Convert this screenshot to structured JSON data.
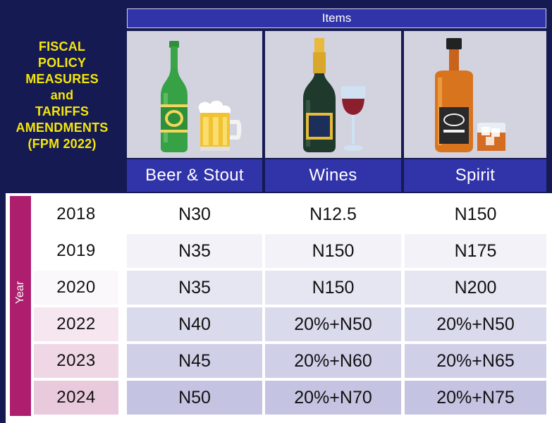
{
  "title_lines": [
    "FISCAL",
    "POLICY",
    "MEASURES",
    "and",
    "TARIFFS",
    "AMENDMENTS",
    "(FPM 2022)"
  ],
  "items_header": "Items",
  "year_label": "Year",
  "columns": [
    "Beer & Stout",
    "Wines",
    "Spirit"
  ],
  "rows": [
    {
      "year": "2018",
      "beer": "N30",
      "wines": "N12.5",
      "spirit": "N150"
    },
    {
      "year": "2019",
      "beer": "N35",
      "wines": "N150",
      "spirit": "N175"
    },
    {
      "year": "2020",
      "beer": "N35",
      "wines": "N150",
      "spirit": "N200"
    },
    {
      "year": "2022",
      "beer": "N40",
      "wines": "20%+N50",
      "spirit": "20%+N50"
    },
    {
      "year": "2023",
      "beer": "N45",
      "wines": "20%+N60",
      "spirit": "20%+N65"
    },
    {
      "year": "2024",
      "beer": "N50",
      "wines": "20%+N70",
      "spirit": "20%+N75"
    }
  ],
  "icons": [
    "beer-bottle-and-mug-icon",
    "wine-bottle-and-glass-icon",
    "whiskey-bottle-and-glass-icon"
  ],
  "colors": {
    "background": "#161a52",
    "header_blue": "#3134a8",
    "title_yellow": "#f5e60a",
    "year_band": "#ad1f6e",
    "image_panel": "#d3d2df"
  }
}
